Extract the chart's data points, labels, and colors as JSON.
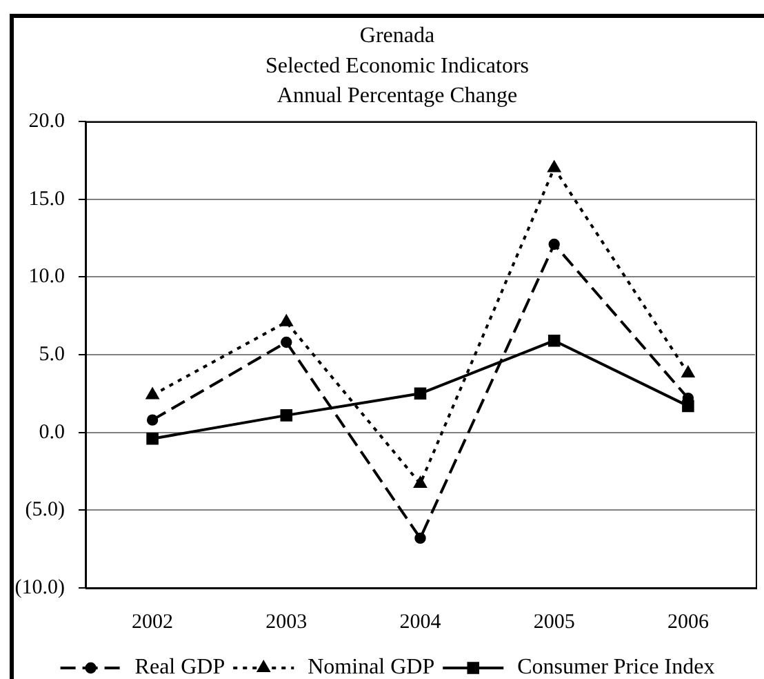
{
  "chart_data": {
    "type": "line",
    "title": "Grenada\nSelected Economic Indicators\nAnnual Percentage Change",
    "categories": [
      "2002",
      "2003",
      "2004",
      "2005",
      "2006"
    ],
    "series": [
      {
        "name": "Real GDP",
        "color": "#000000",
        "marker": "circle",
        "line_style": "dashed",
        "values": [
          0.8,
          5.8,
          -6.8,
          12.1,
          2.2
        ]
      },
      {
        "name": "Nominal GDP",
        "color": "#000000",
        "marker": "triangle",
        "line_style": "dotted",
        "values": [
          2.4,
          7.1,
          -3.3,
          17.0,
          3.8
        ]
      },
      {
        "name": "Consumer Price Index",
        "color": "#000000",
        "marker": "square",
        "line_style": "solid",
        "values": [
          -0.4,
          1.1,
          2.5,
          5.9,
          1.7
        ]
      }
    ],
    "ylim": [
      -10,
      20
    ],
    "yticks": [
      {
        "value": -10,
        "label": "(10.0)"
      },
      {
        "value": -5,
        "label": "(5.0)"
      },
      {
        "value": 0,
        "label": "0.0"
      },
      {
        "value": 5,
        "label": "5.0"
      },
      {
        "value": 10,
        "label": "10.0"
      },
      {
        "value": 15,
        "label": "15.0"
      },
      {
        "value": 20,
        "label": "20.0"
      }
    ],
    "grid": "y",
    "legend": "bottom"
  }
}
